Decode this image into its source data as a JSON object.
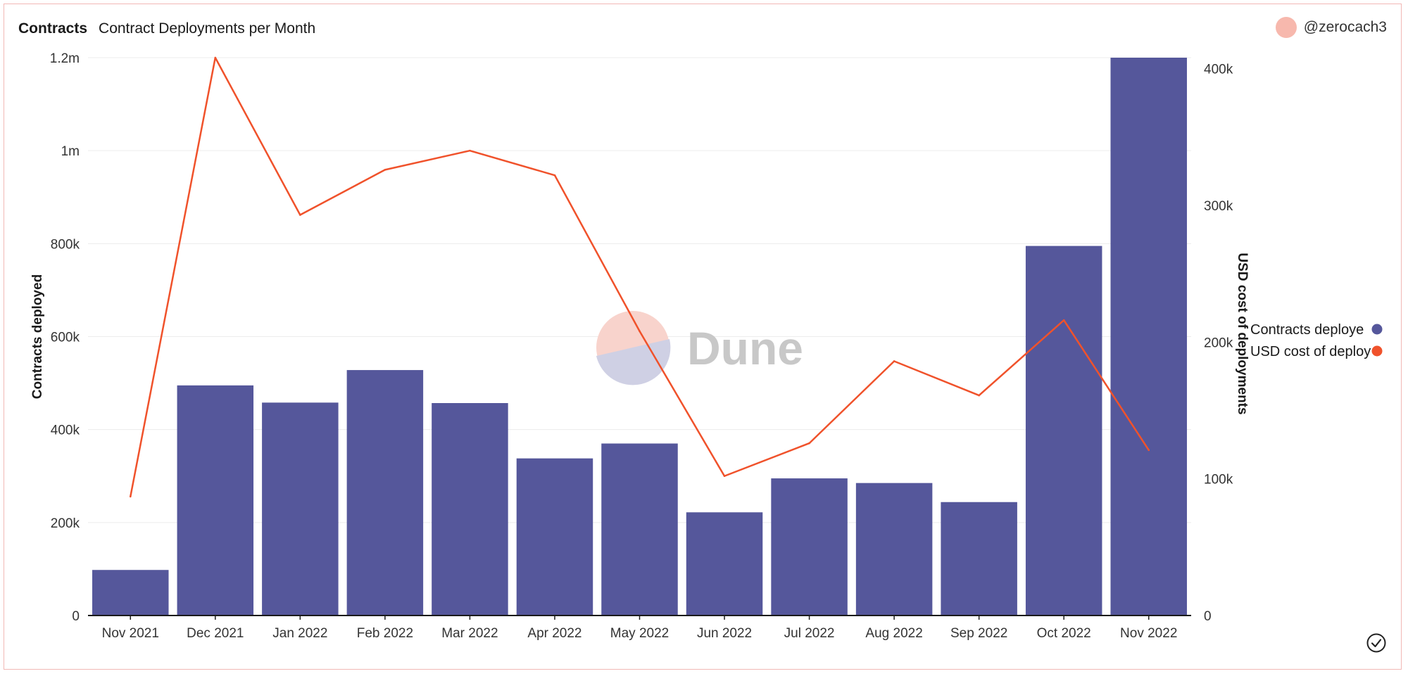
{
  "header": {
    "query_name": "Contracts",
    "chart_title": "Contract Deployments per Month"
  },
  "author": {
    "handle": "@zerocach3"
  },
  "watermark": {
    "text": "Dune"
  },
  "colors": {
    "bar": "#55579b",
    "line": "#f0522b",
    "grid": "#ececec",
    "axis": "#1a1a1a",
    "text": "#333333"
  },
  "chart_data": {
    "type": "bar",
    "categories": [
      "Nov 2021",
      "Dec 2021",
      "Jan 2022",
      "Feb 2022",
      "Mar 2022",
      "Apr 2022",
      "May 2022",
      "Jun 2022",
      "Jul 2022",
      "Aug 2022",
      "Sep 2022",
      "Oct 2022",
      "Nov 2022"
    ],
    "series": [
      {
        "name": "Contracts deployed",
        "legend_label": "Contracts deploye",
        "type": "bar",
        "axis": "left",
        "values": [
          98000,
          495000,
          458000,
          528000,
          457000,
          338000,
          370000,
          222000,
          295000,
          285000,
          244000,
          795000,
          1200000
        ]
      },
      {
        "name": "USD cost of deployments",
        "legend_label": "USD cost of deploy",
        "type": "line",
        "axis": "right",
        "values": [
          87000,
          408000,
          293000,
          326000,
          340000,
          322000,
          208000,
          102000,
          126000,
          186000,
          161000,
          216000,
          121000
        ]
      }
    ],
    "ylabel": "Contracts deployed",
    "y2label": "USD cost of deployments",
    "ylim": [
      0,
      1200000
    ],
    "y2lim": [
      0,
      408000
    ],
    "yticks": [
      0,
      200000,
      400000,
      600000,
      800000,
      1000000,
      1200000
    ],
    "ytick_labels": [
      "0",
      "200k",
      "400k",
      "600k",
      "800k",
      "1m",
      "1.2m"
    ],
    "y2ticks": [
      0,
      100000,
      200000,
      300000,
      400000
    ],
    "y2tick_labels": [
      "0",
      "100k",
      "200k",
      "300k",
      "400k"
    ],
    "grid": true,
    "legend_position": "right"
  }
}
